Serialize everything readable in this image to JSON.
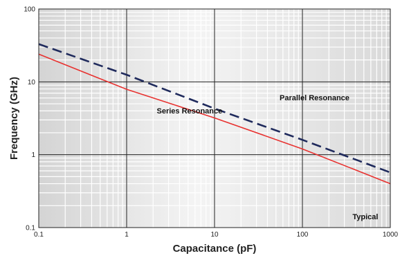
{
  "chart_data": {
    "type": "line",
    "xlabel": "Capacitance (pF)",
    "ylabel": "Frequency (GHz)",
    "xscale": "log",
    "yscale": "log",
    "xlim": [
      0.1,
      1000
    ],
    "ylim": [
      0.1,
      100
    ],
    "grid": true,
    "x_ticks": [
      "0.1",
      "1",
      "10",
      "100",
      "1000"
    ],
    "y_ticks": [
      "0.1",
      "1",
      "10",
      "100"
    ],
    "series": [
      {
        "name": "Series Resonance",
        "style": "solid",
        "color": "#e8312f",
        "x": [
          0.1,
          1,
          10,
          100,
          1000
        ],
        "y": [
          24,
          7.9,
          3.2,
          1.2,
          0.4
        ]
      },
      {
        "name": "Parallel Resonance",
        "style": "dashed",
        "color": "#1f2a5c",
        "x": [
          0.1,
          1,
          10,
          100,
          1000
        ],
        "y": [
          33,
          12.5,
          4.3,
          1.6,
          0.57
        ]
      }
    ],
    "annotations": [
      {
        "text": "Parallel Resonance",
        "x": 55,
        "y": 5.6
      },
      {
        "text": "Series Resonance",
        "x": 2.2,
        "y": 3.7
      },
      {
        "text": "Typical",
        "x": 520,
        "y": 0.13
      }
    ]
  }
}
